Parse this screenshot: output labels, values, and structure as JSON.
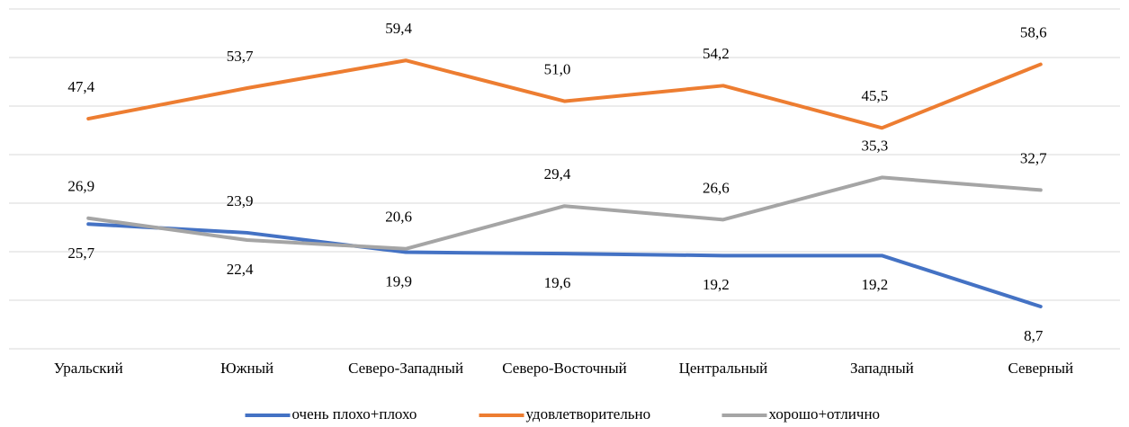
{
  "chart_data": {
    "type": "line",
    "categories": [
      "Уральский",
      "Южный",
      "Северо-Западный",
      "Северо-Восточный",
      "Центральный",
      "Западный",
      "Северный"
    ],
    "series": [
      {
        "name": "очень плохо+плохо",
        "color": "#4472c4",
        "values": [
          25.7,
          23.9,
          19.9,
          19.6,
          19.2,
          19.2,
          8.7
        ],
        "value_labels": [
          "25,7",
          "23,9",
          "19,9",
          "19,6",
          "19,2",
          "19,2",
          "8,7"
        ]
      },
      {
        "name": "удовлетворительно",
        "color": "#ed7d31",
        "values": [
          47.4,
          53.7,
          59.4,
          51.0,
          54.2,
          45.5,
          58.6
        ],
        "value_labels": [
          "47,4",
          "53,7",
          "59,4",
          "51,0",
          "54,2",
          "45,5",
          "58,6"
        ]
      },
      {
        "name": "хорошо+отлично",
        "color": "#a5a5a5",
        "values": [
          26.9,
          22.4,
          20.6,
          29.4,
          26.6,
          35.3,
          32.7
        ],
        "value_labels": [
          "26,9",
          "22,4",
          "20,6",
          "29,4",
          "26,6",
          "35,3",
          "32,7"
        ]
      }
    ],
    "ylim": [
      0,
      70
    ],
    "yticks": [
      0,
      10,
      20,
      30,
      40,
      50,
      60,
      70
    ],
    "grid": true,
    "legend": "bottom"
  }
}
